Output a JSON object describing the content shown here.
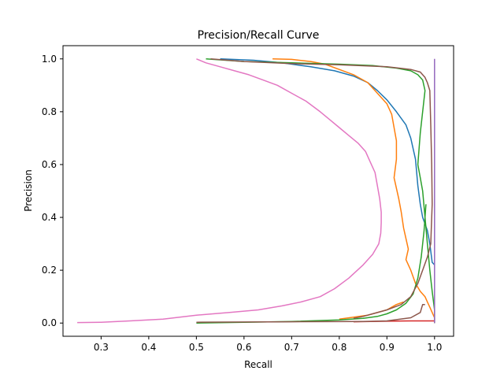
{
  "chart_data": {
    "type": "line",
    "title": "Precision/Recall Curve",
    "xlabel": "Recall",
    "ylabel": "Precision",
    "xlim": [
      0.22,
      1.04
    ],
    "ylim": [
      -0.05,
      1.05
    ],
    "x_ticks": [
      0.3,
      0.4,
      0.5,
      0.6,
      0.7,
      0.8,
      0.9,
      1.0
    ],
    "x_tick_labels": [
      "0.3",
      "0.4",
      "0.5",
      "0.6",
      "0.7",
      "0.8",
      "0.9",
      "1.0"
    ],
    "y_ticks": [
      0.0,
      0.2,
      0.4,
      0.6,
      0.8,
      1.0
    ],
    "y_tick_labels": [
      "0.0",
      "0.2",
      "0.4",
      "0.6",
      "0.8",
      "1.0"
    ],
    "grid": false,
    "legend": "none",
    "series": [
      {
        "color": "#1f77b4",
        "points": [
          [
            0.55,
            1.0
          ],
          [
            0.62,
            0.995
          ],
          [
            0.68,
            0.985
          ],
          [
            0.74,
            0.97
          ],
          [
            0.79,
            0.955
          ],
          [
            0.83,
            0.935
          ],
          [
            0.86,
            0.91
          ],
          [
            0.88,
            0.88
          ],
          [
            0.9,
            0.845
          ],
          [
            0.92,
            0.8
          ],
          [
            0.94,
            0.75
          ],
          [
            0.95,
            0.7
          ],
          [
            0.96,
            0.62
          ],
          [
            0.965,
            0.52
          ],
          [
            0.97,
            0.45
          ],
          [
            0.975,
            0.4
          ],
          [
            0.985,
            0.35
          ],
          [
            0.99,
            0.3
          ],
          [
            0.995,
            0.23
          ],
          [
            1.0,
            0.22
          ]
        ]
      },
      {
        "color": "#ff7f0e",
        "points": [
          [
            0.66,
            1.0
          ],
          [
            0.7,
            0.998
          ],
          [
            0.74,
            0.99
          ],
          [
            0.77,
            0.98
          ],
          [
            0.8,
            0.96
          ],
          [
            0.83,
            0.94
          ],
          [
            0.86,
            0.91
          ],
          [
            0.88,
            0.87
          ],
          [
            0.9,
            0.83
          ],
          [
            0.91,
            0.79
          ],
          [
            0.915,
            0.74
          ],
          [
            0.92,
            0.69
          ],
          [
            0.92,
            0.62
          ],
          [
            0.915,
            0.55
          ],
          [
            0.925,
            0.47
          ],
          [
            0.93,
            0.42
          ],
          [
            0.935,
            0.36
          ],
          [
            0.94,
            0.32
          ],
          [
            0.945,
            0.28
          ],
          [
            0.94,
            0.24
          ],
          [
            0.95,
            0.2
          ],
          [
            0.96,
            0.15
          ],
          [
            0.97,
            0.12
          ],
          [
            0.98,
            0.1
          ],
          [
            0.985,
            0.08
          ],
          [
            0.99,
            0.06
          ],
          [
            0.995,
            0.04
          ],
          [
            1.0,
            0.02
          ],
          [
            1.0,
            0.0
          ]
        ]
      },
      {
        "color": "#ff7f0e",
        "points": [
          [
            0.8,
            0.015
          ],
          [
            0.86,
            0.03
          ],
          [
            0.9,
            0.05
          ],
          [
            0.92,
            0.07
          ],
          [
            0.935,
            0.08
          ]
        ]
      },
      {
        "color": "#2ca02c",
        "points": [
          [
            0.52,
            1.0
          ],
          [
            0.6,
            0.99
          ],
          [
            0.7,
            0.985
          ],
          [
            0.8,
            0.98
          ],
          [
            0.87,
            0.975
          ],
          [
            0.92,
            0.965
          ],
          [
            0.95,
            0.955
          ],
          [
            0.965,
            0.94
          ],
          [
            0.975,
            0.92
          ],
          [
            0.98,
            0.88
          ],
          [
            0.975,
            0.8
          ],
          [
            0.97,
            0.72
          ],
          [
            0.965,
            0.6
          ],
          [
            0.97,
            0.55
          ],
          [
            0.975,
            0.5
          ],
          [
            0.98,
            0.4
          ],
          [
            0.985,
            0.3
          ],
          [
            0.99,
            0.2
          ],
          [
            0.995,
            0.12
          ],
          [
            1.0,
            0.05
          ],
          [
            1.0,
            0.0
          ]
        ]
      },
      {
        "color": "#2ca02c",
        "points": [
          [
            0.5,
            0.0
          ],
          [
            0.6,
            0.003
          ],
          [
            0.7,
            0.006
          ],
          [
            0.8,
            0.012
          ],
          [
            0.85,
            0.018
          ],
          [
            0.88,
            0.025
          ],
          [
            0.9,
            0.035
          ],
          [
            0.92,
            0.05
          ],
          [
            0.94,
            0.075
          ],
          [
            0.955,
            0.11
          ],
          [
            0.965,
            0.17
          ],
          [
            0.972,
            0.25
          ],
          [
            0.978,
            0.35
          ],
          [
            0.982,
            0.45
          ]
        ]
      },
      {
        "color": "#d62728",
        "points": [
          [
            0.83,
            0.005
          ],
          [
            0.9,
            0.007
          ],
          [
            0.95,
            0.008
          ],
          [
            1.0,
            0.008
          ]
        ]
      },
      {
        "color": "#9467bd",
        "points": [
          [
            1.0,
            0.0
          ],
          [
            1.0,
            0.3
          ],
          [
            1.0,
            0.7
          ],
          [
            1.0,
            1.0
          ]
        ]
      },
      {
        "color": "#8c564b",
        "points": [
          [
            0.53,
            1.0
          ],
          [
            0.6,
            0.99
          ],
          [
            0.7,
            0.982
          ],
          [
            0.8,
            0.978
          ],
          [
            0.9,
            0.97
          ],
          [
            0.95,
            0.96
          ],
          [
            0.97,
            0.95
          ],
          [
            0.98,
            0.93
          ],
          [
            0.985,
            0.91
          ],
          [
            0.99,
            0.88
          ],
          [
            0.992,
            0.75
          ],
          [
            0.994,
            0.6
          ],
          [
            0.995,
            0.45
          ],
          [
            0.992,
            0.3
          ],
          [
            0.985,
            0.25
          ],
          [
            0.975,
            0.2
          ],
          [
            0.965,
            0.15
          ],
          [
            0.95,
            0.1
          ],
          [
            0.93,
            0.07
          ],
          [
            0.9,
            0.05
          ],
          [
            0.87,
            0.035
          ],
          [
            0.85,
            0.025
          ],
          [
            0.83,
            0.018
          ]
        ]
      },
      {
        "color": "#8c564b",
        "points": [
          [
            0.5,
            0.003
          ],
          [
            0.7,
            0.005
          ],
          [
            0.85,
            0.006
          ],
          [
            0.9,
            0.008
          ],
          [
            0.95,
            0.02
          ],
          [
            0.97,
            0.04
          ],
          [
            0.975,
            0.07
          ],
          [
            0.98,
            0.07
          ]
        ]
      },
      {
        "color": "#e377c2",
        "points": [
          [
            0.5,
            1.0
          ],
          [
            0.52,
            0.985
          ],
          [
            0.55,
            0.97
          ],
          [
            0.58,
            0.955
          ],
          [
            0.61,
            0.94
          ],
          [
            0.64,
            0.92
          ],
          [
            0.67,
            0.9
          ],
          [
            0.7,
            0.87
          ],
          [
            0.73,
            0.84
          ],
          [
            0.76,
            0.8
          ],
          [
            0.78,
            0.77
          ],
          [
            0.8,
            0.74
          ],
          [
            0.82,
            0.71
          ],
          [
            0.84,
            0.68
          ],
          [
            0.855,
            0.65
          ],
          [
            0.865,
            0.61
          ],
          [
            0.875,
            0.57
          ],
          [
            0.88,
            0.52
          ],
          [
            0.885,
            0.47
          ],
          [
            0.888,
            0.42
          ],
          [
            0.888,
            0.38
          ],
          [
            0.887,
            0.34
          ],
          [
            0.883,
            0.3
          ],
          [
            0.87,
            0.26
          ],
          [
            0.85,
            0.22
          ],
          [
            0.82,
            0.17
          ],
          [
            0.79,
            0.13
          ],
          [
            0.76,
            0.1
          ],
          [
            0.72,
            0.08
          ],
          [
            0.68,
            0.065
          ],
          [
            0.63,
            0.05
          ],
          [
            0.57,
            0.04
          ],
          [
            0.5,
            0.03
          ],
          [
            0.43,
            0.015
          ],
          [
            0.36,
            0.008
          ],
          [
            0.3,
            0.003
          ],
          [
            0.25,
            0.002
          ]
        ]
      }
    ]
  }
}
